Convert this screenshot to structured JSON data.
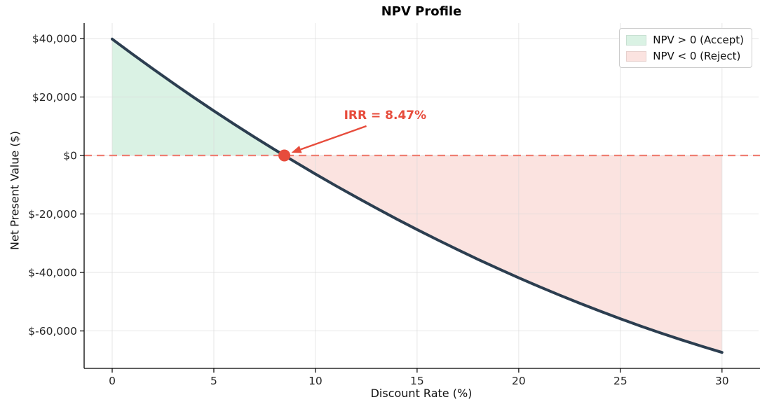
{
  "chart_data": {
    "type": "line",
    "title": "NPV Profile",
    "xlabel": "Discount Rate (%)",
    "ylabel": "Net Present Value ($)",
    "xlim": [
      -1.38,
      31.8
    ],
    "ylim": [
      -72800,
      45270
    ],
    "grid": true,
    "x_ticks": [
      0,
      5,
      10,
      15,
      20,
      25,
      30
    ],
    "x_tick_labels": [
      "0",
      "5",
      "10",
      "15",
      "20",
      "25",
      "30"
    ],
    "y_ticks": [
      40000,
      20000,
      0,
      -20000,
      -40000,
      -60000
    ],
    "y_tick_labels": [
      "$40,000",
      "$20,000",
      "$0",
      "$-20,000",
      "$-40,000",
      "$-60,000"
    ],
    "series": [
      {
        "name": "NPV",
        "color": "#2c3e50",
        "line_width": 4,
        "x": [
          0,
          1,
          2,
          3,
          4,
          5,
          6,
          7,
          8,
          8.47,
          9,
          10,
          11,
          12,
          13,
          14,
          15,
          16,
          17,
          18,
          19,
          20,
          21,
          22,
          23,
          24,
          25,
          26,
          27,
          28,
          29,
          30
        ],
        "y": [
          39800,
          34650,
          29620,
          24710,
          19920,
          15250,
          10700,
          6270,
          1960,
          0,
          -2230,
          -6330,
          -10330,
          -14230,
          -18030,
          -21730,
          -25330,
          -28830,
          -32230,
          -35530,
          -38730,
          -41830,
          -44830,
          -47730,
          -50530,
          -53230,
          -55830,
          -58330,
          -60730,
          -63030,
          -65230,
          -67330
        ]
      }
    ],
    "irr": {
      "x": 8.47,
      "npv": 0,
      "annotation": "IRR = 8.47%",
      "color": "#e74c3c"
    },
    "zero_line": {
      "value": 0,
      "style": "dashed",
      "color": "#ef7e72"
    },
    "regions": [
      {
        "label": "NPV > 0 (Accept)",
        "range": [
          0,
          8.47
        ],
        "fill": "#daf2e4"
      },
      {
        "label": "NPV < 0 (Reject)",
        "range": [
          8.47,
          30
        ],
        "fill": "#fbe3e0"
      }
    ],
    "legend": {
      "position": "upper right",
      "border_color": "#cccccc",
      "entries": [
        {
          "label": "NPV > 0 (Accept)",
          "swatch": "#daf2e4"
        },
        {
          "label": "NPV < 0 (Reject)",
          "swatch": "#fbe3e0"
        }
      ]
    }
  }
}
